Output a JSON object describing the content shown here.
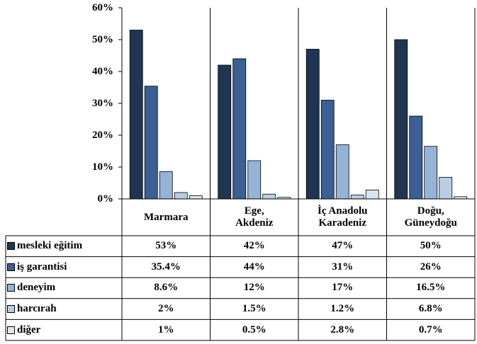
{
  "chart_data": {
    "type": "bar",
    "categories": [
      "Marmara",
      "Ege,\nAkdeniz",
      "İç Anadolu\nKaradeniz",
      "Doğu,\nGüneydoğu"
    ],
    "series": [
      {
        "name": "mesleki eğitim",
        "color": "#1f3552",
        "values": [
          53,
          42,
          47,
          50
        ],
        "value_labels": [
          "53%",
          "42%",
          "47%",
          "50%"
        ]
      },
      {
        "name": "iş garantisi",
        "color": "#3a6095",
        "values": [
          35.4,
          44,
          31,
          26
        ],
        "value_labels": [
          "35.4%",
          "44%",
          "31%",
          "26%"
        ]
      },
      {
        "name": "deneyim",
        "color": "#95b3d7",
        "values": [
          8.6,
          12,
          17,
          16.5
        ],
        "value_labels": [
          "8.6%",
          "12%",
          "17%",
          "16.5%"
        ]
      },
      {
        "name": "harcırah",
        "color": "#b9cde5",
        "values": [
          2,
          1.5,
          1.2,
          6.8
        ],
        "value_labels": [
          "2%",
          "1.5%",
          "1.2%",
          "6.8%"
        ]
      },
      {
        "name": "diğer",
        "color": "#dce6f2",
        "values": [
          1,
          0.5,
          2.8,
          0.7
        ],
        "value_labels": [
          "1%",
          "0.5%",
          "2.8%",
          "0.7%"
        ]
      }
    ],
    "ylim": [
      0,
      60
    ],
    "yticks": [
      {
        "value": 0,
        "label": "0%"
      },
      {
        "value": 10,
        "label": "10%"
      },
      {
        "value": 20,
        "label": "20%"
      },
      {
        "value": 30,
        "label": "30%"
      },
      {
        "value": 40,
        "label": "40%"
      },
      {
        "value": 50,
        "label": "50%"
      },
      {
        "value": 60,
        "label": "60%"
      }
    ],
    "grid": false
  }
}
